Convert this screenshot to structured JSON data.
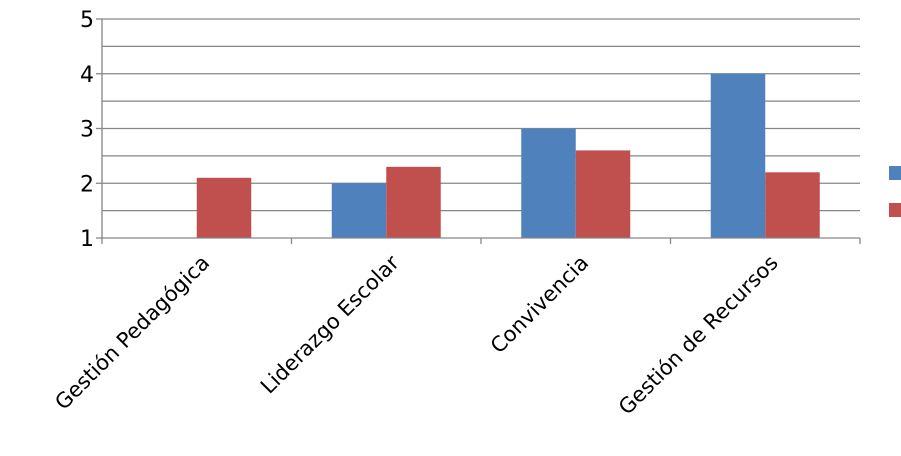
{
  "chart_data": {
    "type": "bar",
    "categories": [
      "Gestión Pedagógica",
      "Liderazgo Escolar",
      "Convivencia",
      "Gestión de Recursos"
    ],
    "series": [
      {
        "color": "#4F81BD",
        "values": [
          1,
          2,
          3,
          4
        ]
      },
      {
        "color": "#C0504D",
        "values": [
          2.1,
          2.3,
          2.6,
          2.2
        ]
      }
    ],
    "ylim": [
      1,
      5
    ],
    "yticks": [
      1,
      2,
      3,
      4,
      5
    ],
    "minor_gridlines": true,
    "grid": true,
    "legend": {
      "position": "right",
      "entries_shown_without_text": true
    },
    "title": "",
    "xlabel": "",
    "ylabel": ""
  }
}
